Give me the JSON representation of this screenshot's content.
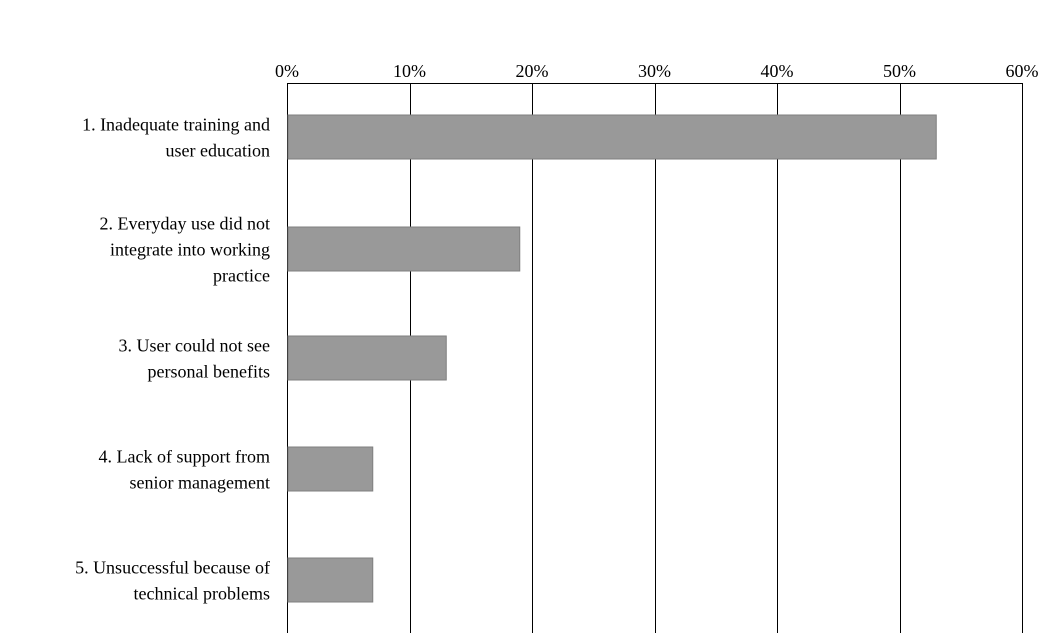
{
  "chart_data": {
    "type": "bar",
    "orientation": "horizontal",
    "categories": [
      [
        "1. Inadequate training and",
        "user education"
      ],
      [
        "2. Everyday use did not",
        "integrate into working",
        "practice"
      ],
      [
        "3. User could not see",
        "personal benefits"
      ],
      [
        "4. Lack of support from",
        "senior management"
      ],
      [
        "5. Unsuccessful because of",
        "technical problems"
      ]
    ],
    "values": [
      53,
      19,
      13,
      7,
      7
    ],
    "x_ticks": [
      "0%",
      "10%",
      "20%",
      "30%",
      "40%",
      "50%",
      "60%"
    ],
    "xlim": [
      0,
      60
    ],
    "x_axis_position": "top",
    "grid": true,
    "bar_color": "#999999",
    "grid_color": "#000000",
    "legend": "none"
  }
}
